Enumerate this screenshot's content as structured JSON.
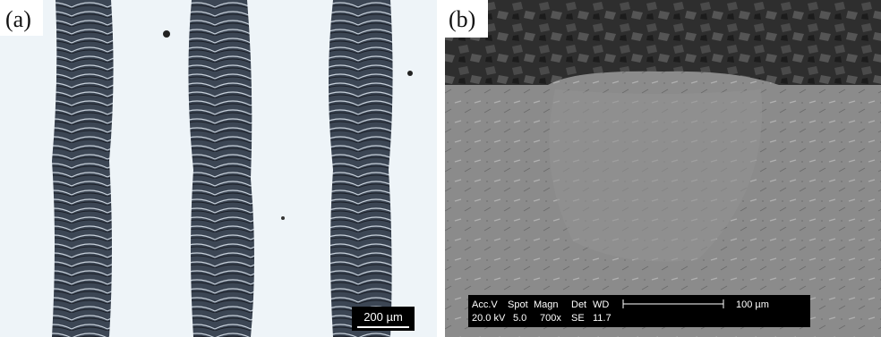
{
  "panel_a": {
    "label": "(a)",
    "scale_bar": "200 µm"
  },
  "panel_b": {
    "label": "(b)",
    "info_header": [
      "Acc.V",
      "Spot",
      "Magn",
      "Det",
      "WD"
    ],
    "info_values": [
      "20.0 kV",
      "5.0",
      "700x",
      "SE",
      "11.7"
    ],
    "scale_bar": "100 µm"
  }
}
